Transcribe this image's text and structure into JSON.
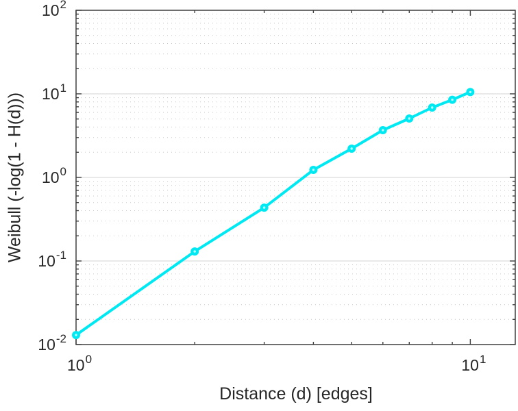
{
  "figure": {
    "background": "#ffffff"
  },
  "chart_data": {
    "type": "line",
    "x_scale": "log",
    "y_scale": "log",
    "xlim": [
      1,
      13
    ],
    "ylim": [
      0.01,
      100
    ],
    "xlabel": "Distance (d) [edges]",
    "ylabel": "Weibull (-log(1 - H(d)))",
    "x": [
      1,
      2,
      3,
      4,
      5,
      6,
      7,
      8,
      9,
      10
    ],
    "series": [
      {
        "name": "weibull-cumulative-hazard",
        "values": [
          0.013,
          0.13,
          0.435,
          1.23,
          2.21,
          3.68,
          5.07,
          6.86,
          8.5,
          10.5
        ],
        "marker": "circle"
      }
    ],
    "x_ticks": [
      {
        "value": 1,
        "label": "10^0"
      },
      {
        "value": 10,
        "label": "10^1"
      }
    ],
    "y_ticks": [
      {
        "value": 0.01,
        "label": "10^-2"
      },
      {
        "value": 0.1,
        "label": "10^-1"
      },
      {
        "value": 1,
        "label": "10^0"
      },
      {
        "value": 10,
        "label": "10^1"
      },
      {
        "value": 100,
        "label": "10^2"
      }
    ],
    "grid": {
      "y_major": true,
      "y_minor": true,
      "x_major": false,
      "x_minor": false
    },
    "legend": null,
    "colors": {
      "line": "#00e9f2",
      "marker_fill": "#00e9f2",
      "marker_center": "#b8ffff",
      "grid_major": "#dcdcdc",
      "grid_minor": "#c9c9c9",
      "frame": "#3f3f3f",
      "text": "#262626"
    }
  }
}
